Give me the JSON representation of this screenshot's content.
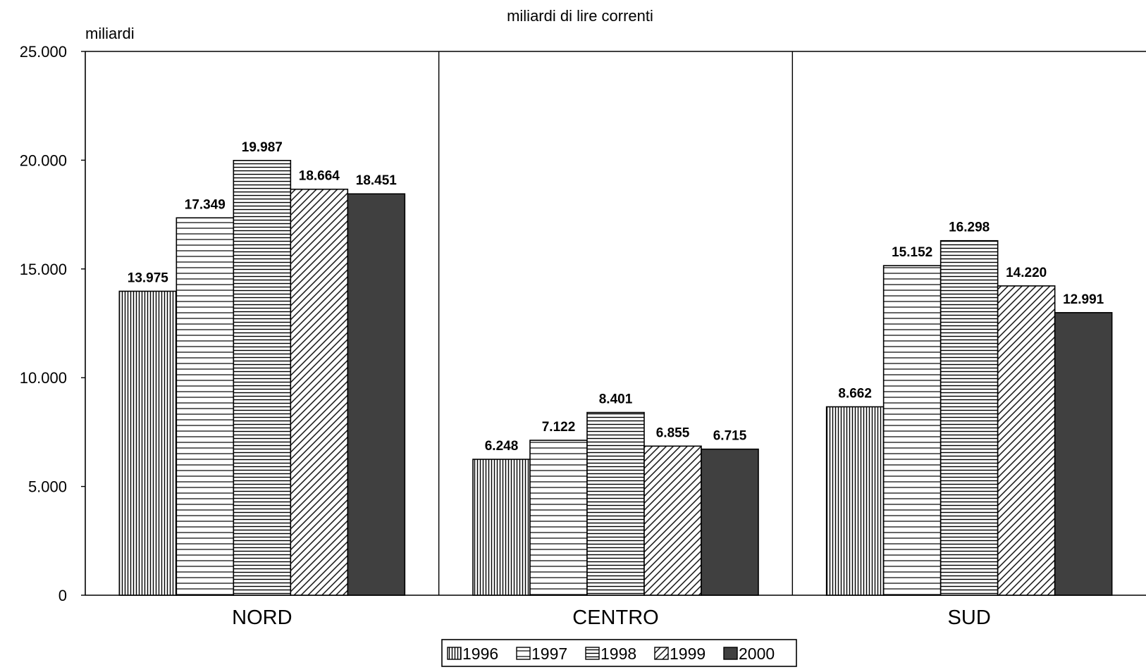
{
  "chart_data": {
    "type": "bar",
    "title": "miliardi di lire correnti",
    "ylabel": "miliardi",
    "xlabel": "",
    "categories": [
      "NORD",
      "CENTRO",
      "SUD"
    ],
    "ylim": [
      0,
      25000
    ],
    "yticks": [
      0,
      5000,
      10000,
      15000,
      20000,
      25000
    ],
    "ytick_labels": [
      "0",
      "5.000",
      "10.000",
      "15.000",
      "20.000",
      "25.000"
    ],
    "grid": false,
    "legend_position": "bottom",
    "series": [
      {
        "name": "1996",
        "pattern": "vertical-lines",
        "values": [
          13975,
          6248,
          8662
        ],
        "labels": [
          "13.975",
          "6.248",
          "8.662"
        ]
      },
      {
        "name": "1997",
        "pattern": "wide-horizontal-lines",
        "values": [
          17349,
          7122,
          15152
        ],
        "labels": [
          "17.349",
          "7.122",
          "15.152"
        ]
      },
      {
        "name": "1998",
        "pattern": "dense-horizontal-lines",
        "values": [
          19987,
          8401,
          16298
        ],
        "labels": [
          "19.987",
          "8.401",
          "16.298"
        ]
      },
      {
        "name": "1999",
        "pattern": "diagonal-lines",
        "values": [
          18664,
          6855,
          14220
        ],
        "labels": [
          "18.664",
          "6.855",
          "14.220"
        ]
      },
      {
        "name": "2000",
        "pattern": "solid",
        "color": "#404040",
        "values": [
          18451,
          6715,
          12991
        ],
        "labels": [
          "18.451",
          "6.715",
          "12.991"
        ]
      }
    ]
  }
}
